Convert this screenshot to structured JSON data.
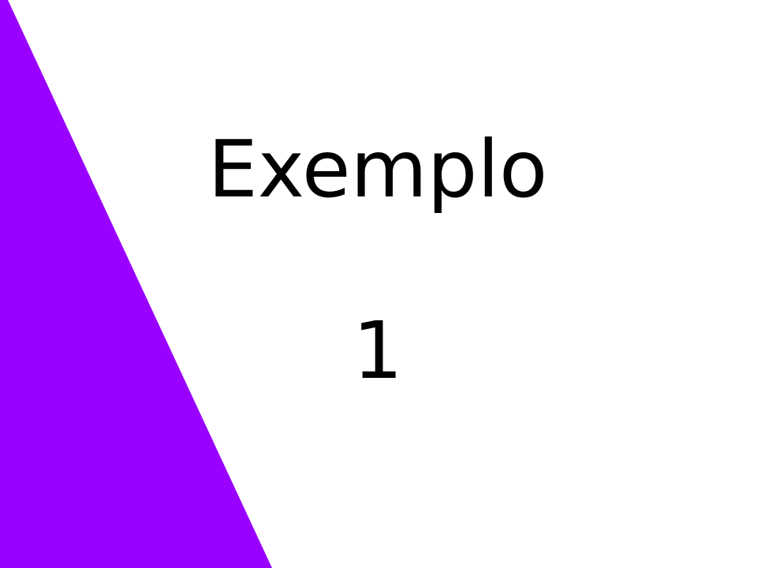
{
  "slide": {
    "title": "Exemplo",
    "number": "1",
    "accent_color": "#9900ff",
    "background_color": "#ffffff",
    "text_color": "#000000"
  }
}
